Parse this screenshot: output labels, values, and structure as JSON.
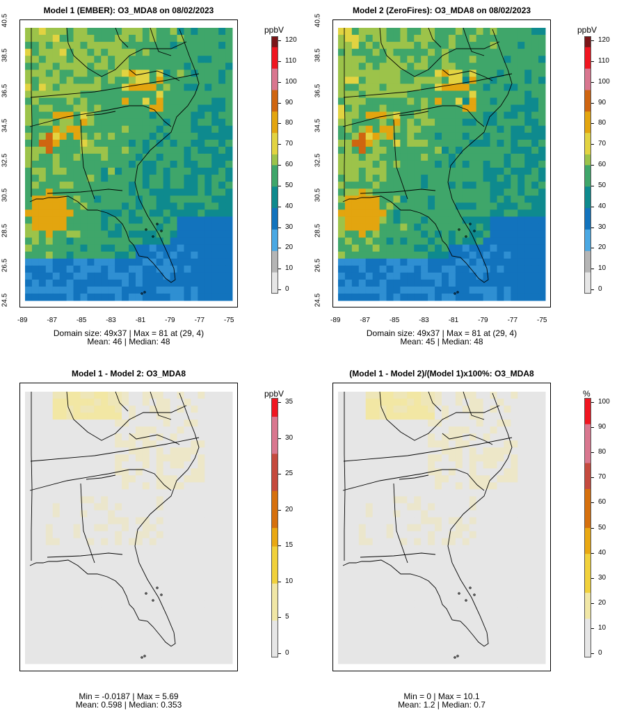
{
  "panels": [
    {
      "title": "Model 1 (EMBER): O3_MDA8 on 08/02/2023",
      "unit": "ppbV",
      "stats_line1": "Domain size: 49x37 | Max = 81 at (29, 4)",
      "stats_line2": "Mean: 46 |  Median: 48",
      "colorbar_ticks": [
        "0",
        "10",
        "20",
        "30",
        "40",
        "50",
        "60",
        "70",
        "80",
        "90",
        "100",
        "110",
        "120"
      ],
      "lat_ticks": [
        "24.5",
        "26.5",
        "28.5",
        "30.5",
        "32.5",
        "34.5",
        "36.5",
        "38.5",
        "40.5"
      ],
      "lon_ticks": [
        "-89",
        "-87",
        "-85",
        "-83",
        "-81",
        "-79",
        "-77",
        "-75"
      ]
    },
    {
      "title": "Model 2 (ZeroFires): O3_MDA8 on 08/02/2023",
      "unit": "ppbV",
      "stats_line1": "Domain size: 49x37 | Max = 81 at (29, 4)",
      "stats_line2": "Mean: 45 |  Median: 48",
      "colorbar_ticks": [
        "0",
        "10",
        "20",
        "30",
        "40",
        "50",
        "60",
        "70",
        "80",
        "90",
        "100",
        "110",
        "120"
      ],
      "lat_ticks": [
        "24.5",
        "26.5",
        "28.5",
        "30.5",
        "32.5",
        "34.5",
        "36.5",
        "38.5",
        "40.5"
      ],
      "lon_ticks": [
        "-89",
        "-87",
        "-85",
        "-83",
        "-81",
        "-79",
        "-77",
        "-75"
      ]
    },
    {
      "title": "Model 1 - Model 2: O3_MDA8",
      "unit": "ppbV",
      "stats_line1": "Min = -0.0187 | Max = 5.69",
      "stats_line2": "Mean: 0.598 |  Median: 0.353",
      "colorbar_ticks": [
        "0",
        "5",
        "10",
        "15",
        "20",
        "25",
        "30",
        "35"
      ]
    },
    {
      "title": "(Model 1 - Model 2)/(Model 1)x100%: O3_MDA8",
      "unit": "%",
      "stats_line1": "Min = 0 | Max = 10.1",
      "stats_line2": "Mean: 1.2 |  Median: 0.7",
      "colorbar_ticks": [
        "0",
        "10",
        "20",
        "30",
        "40",
        "50",
        "60",
        "70",
        "80",
        "90",
        "100"
      ]
    }
  ],
  "colors": {
    "ozone_scale": [
      "#e6e6e6",
      "#b5b5b5",
      "#4aa8e3",
      "#1273bd",
      "#0e8a8e",
      "#3fa66a",
      "#9cc34a",
      "#e2d341",
      "#e3a50f",
      "#cf6510",
      "#d9768f",
      "#f01520",
      "#7a1518"
    ],
    "diff_scale": [
      "#e6e6e6",
      "#f1e7a6",
      "#f1d13b",
      "#e9a812",
      "#d6700d",
      "#c54a3e",
      "#d9778f",
      "#f01520"
    ]
  }
}
